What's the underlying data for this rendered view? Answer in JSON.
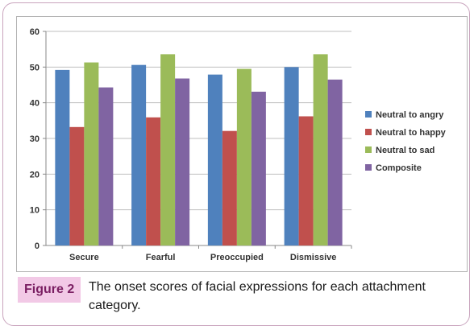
{
  "figure": {
    "label": "Figure 2",
    "caption": "The onset scores of facial expressions for each attachment category."
  },
  "chart_data": {
    "type": "bar",
    "categories": [
      "Secure",
      "Fearful",
      "Preoccupied",
      "Dismissive"
    ],
    "series": [
      {
        "name": "Neutral to angry",
        "color": "#4f81bd",
        "values": [
          49.2,
          50.6,
          47.9,
          50.0
        ]
      },
      {
        "name": "Neutral to happy",
        "color": "#c0504d",
        "values": [
          33.2,
          35.9,
          32.1,
          36.2
        ]
      },
      {
        "name": "Neutral to sad",
        "color": "#9bbb59",
        "values": [
          51.3,
          53.6,
          49.5,
          53.6
        ]
      },
      {
        "name": "Composite",
        "color": "#8064a2",
        "values": [
          44.3,
          46.8,
          43.1,
          46.5
        ]
      }
    ],
    "ylim": [
      0,
      60
    ],
    "yticks": [
      0,
      10,
      20,
      30,
      40,
      50,
      60
    ],
    "grid": true,
    "legend_position": "right"
  }
}
